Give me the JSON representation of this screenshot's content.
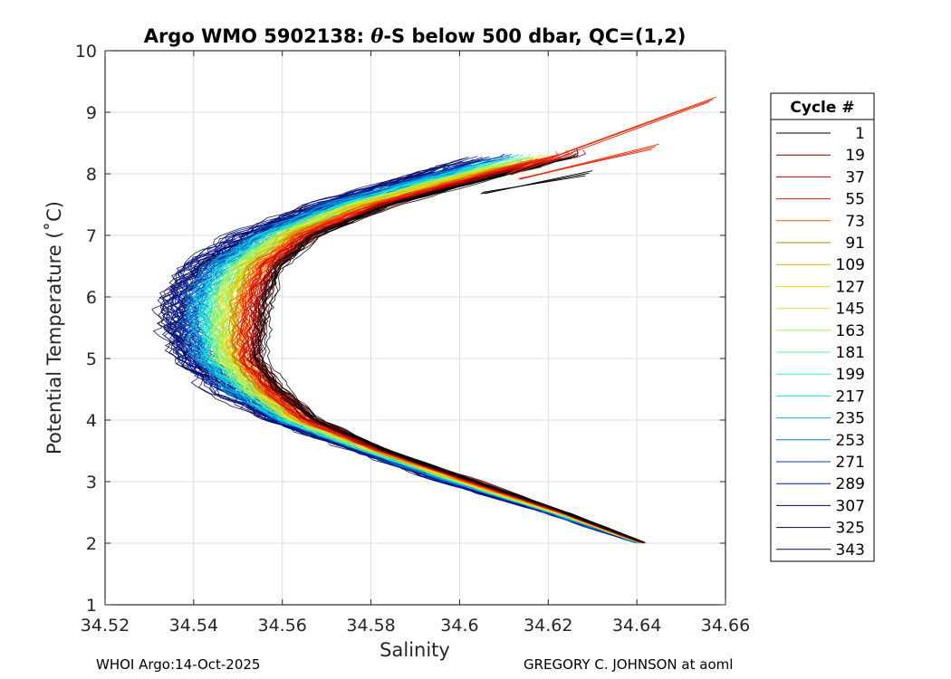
{
  "chart_data": {
    "type": "line",
    "title_prefix": "Argo WMO 5902138: ",
    "title_symbol": "θ",
    "title_suffix": "-S below 500 dbar,  QC=(1,2)",
    "xlabel": "Salinity",
    "ylabel": "Potential Temperature (˚C)",
    "xlim": [
      34.52,
      34.66
    ],
    "ylim": [
      1,
      10
    ],
    "xticks": [
      34.52,
      34.54,
      34.56,
      34.58,
      34.6,
      34.62,
      34.64,
      34.66
    ],
    "xtick_labels": [
      "34.52",
      "34.54",
      "34.56",
      "34.58",
      "34.6",
      "34.62",
      "34.64",
      "34.66"
    ],
    "yticks": [
      1,
      2,
      3,
      4,
      5,
      6,
      7,
      8,
      9,
      10
    ],
    "ytick_labels": [
      "1",
      "2",
      "3",
      "4",
      "5",
      "6",
      "7",
      "8",
      "9",
      "10"
    ],
    "grid": true,
    "legend_title": "Cycle #",
    "legend_position": "right-outside",
    "colormap": "jet",
    "series": [
      {
        "name": "1",
        "color": "#000000"
      },
      {
        "name": "19",
        "color": "#7f0000"
      },
      {
        "name": "37",
        "color": "#b50000"
      },
      {
        "name": "55",
        "color": "#ee1200"
      },
      {
        "name": "73",
        "color": "#ff4a00"
      },
      {
        "name": "91",
        "color": "#c08000"
      },
      {
        "name": "109",
        "color": "#e0b000"
      },
      {
        "name": "127",
        "color": "#f4e000"
      },
      {
        "name": "145",
        "color": "#d4f03a"
      },
      {
        "name": "163",
        "color": "#9bf06b"
      },
      {
        "name": "181",
        "color": "#5cf09e"
      },
      {
        "name": "199",
        "color": "#28f0c8"
      },
      {
        "name": "217",
        "color": "#12e6e8"
      },
      {
        "name": "235",
        "color": "#00b4e6"
      },
      {
        "name": "253",
        "color": "#0078d0"
      },
      {
        "name": "271",
        "color": "#0040c4"
      },
      {
        "name": "289",
        "color": "#0018a8"
      },
      {
        "name": "307",
        "color": "#00086e"
      },
      {
        "name": "325",
        "color": "#000848"
      },
      {
        "name": "343",
        "color": "#000a50"
      }
    ],
    "envelope": {
      "theta": [
        2.0,
        2.5,
        3.0,
        3.5,
        4.0,
        4.5,
        5.0,
        5.5,
        6.0,
        6.5,
        7.0,
        7.5,
        8.0,
        8.3
      ],
      "salinity_early": [
        34.642,
        34.624,
        34.604,
        34.584,
        34.568,
        34.56,
        34.555,
        34.556,
        34.557,
        34.56,
        34.568,
        34.585,
        34.611,
        34.628
      ],
      "salinity_late": [
        34.641,
        34.62,
        34.597,
        34.578,
        34.558,
        34.546,
        34.538,
        34.535,
        34.535,
        34.54,
        34.551,
        34.568,
        34.592,
        34.605
      ],
      "late_noise": 0.005,
      "early_noise": 0.002,
      "early_top": [
        {
          "s_from": 34.611,
          "t_from": 8.0,
          "s_to": 34.658,
          "t_to": 9.25
        },
        {
          "s_from": 34.614,
          "t_from": 7.9,
          "s_to": 34.645,
          "t_to": 8.48
        },
        {
          "s_from": 34.605,
          "t_from": 7.7,
          "s_to": 34.63,
          "t_to": 8.05
        }
      ]
    }
  },
  "footer": {
    "left": "WHOI Argo:14-Oct-2025",
    "right": "GREGORY C. JOHNSON at aoml"
  }
}
